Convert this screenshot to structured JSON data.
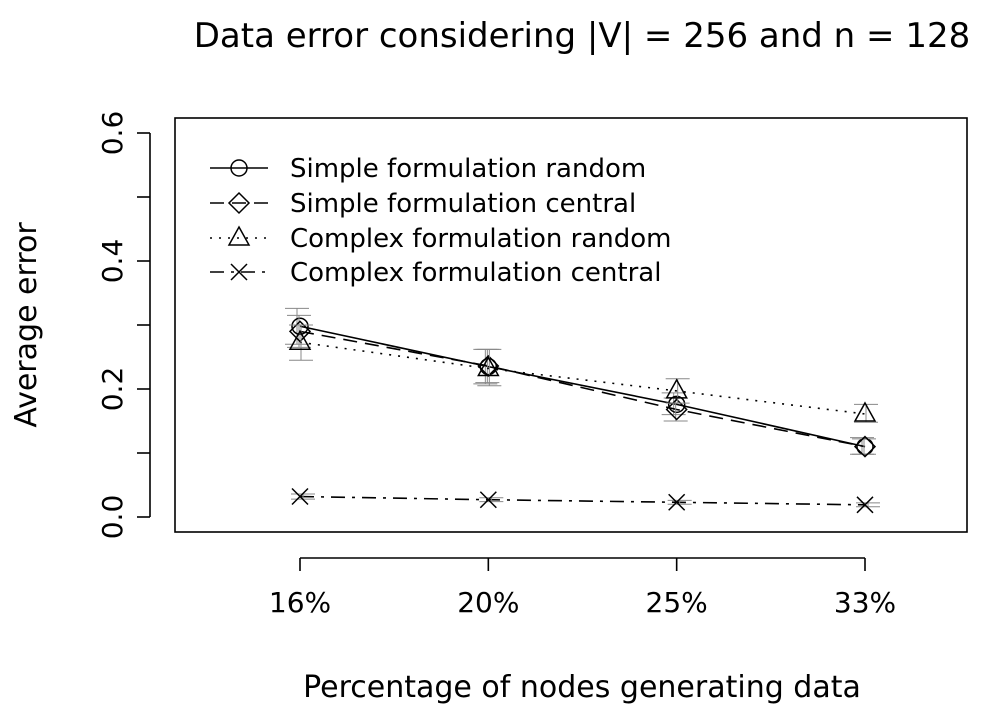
{
  "chart_data": {
    "type": "line",
    "title": "Data error considering |V| = 256 and n = 128",
    "xlabel": "Percentage of nodes generating data",
    "ylabel": "Average error",
    "categories": [
      "16%",
      "20%",
      "25%",
      "33%"
    ],
    "ylim": [
      0,
      0.6
    ],
    "yticks": [
      "0.0",
      "0.2",
      "0.4",
      "0.6"
    ],
    "grid": false,
    "legend_position": "top-left",
    "series": [
      {
        "name": "Simple formulation random",
        "marker": "circle",
        "line": "solid",
        "values": [
          0.298,
          0.235,
          0.176,
          0.11
        ],
        "err_low": [
          0.27,
          0.208,
          0.16,
          0.098
        ],
        "err_high": [
          0.326,
          0.262,
          0.194,
          0.124
        ]
      },
      {
        "name": "Simple formulation central",
        "marker": "diamond",
        "line": "dashed",
        "values": [
          0.29,
          0.236,
          0.168,
          0.11
        ],
        "err_low": [
          0.265,
          0.21,
          0.15,
          0.098
        ],
        "err_high": [
          0.315,
          0.262,
          0.186,
          0.122
        ]
      },
      {
        "name": "Complex formulation random",
        "marker": "triangle",
        "line": "dotted",
        "values": [
          0.273,
          0.232,
          0.197,
          0.161
        ],
        "err_low": [
          0.245,
          0.205,
          0.178,
          0.148
        ],
        "err_high": [
          0.3,
          0.262,
          0.216,
          0.176
        ]
      },
      {
        "name": "Complex formulation central",
        "marker": "cross",
        "line": "dashdot",
        "values": [
          0.032,
          0.027,
          0.023,
          0.019
        ],
        "err_low": [
          0.028,
          0.024,
          0.02,
          0.016
        ],
        "err_high": [
          0.036,
          0.03,
          0.026,
          0.022
        ]
      }
    ]
  }
}
